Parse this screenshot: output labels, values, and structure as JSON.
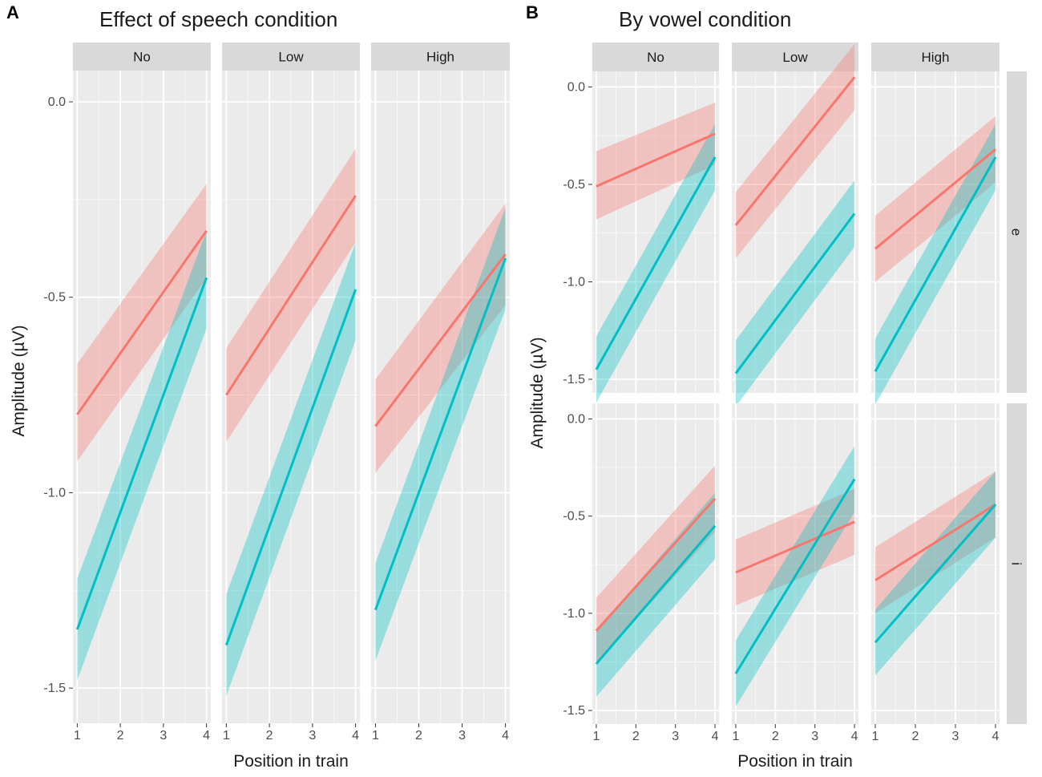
{
  "colors": {
    "series_red": "#F8766D",
    "series_red_band": "#F8766D",
    "series_teal": "#00BFC4",
    "series_teal_band": "#00BFC4",
    "panel_bg": "#EBEBEB",
    "strip_bg": "#D9D9D9",
    "grid": "#FFFFFF"
  },
  "chart_data": [
    {
      "type": "line",
      "panel_letter": "A",
      "title": "Effect of speech condition",
      "xlabel": "Position in train",
      "ylabel": "Amplitude (µV)",
      "x_ticks": [
        "1",
        "2",
        "3",
        "4"
      ],
      "y_ticks": [
        "0.0",
        "-0.5",
        "-1.0",
        "-1.5"
      ],
      "y_tick_values": [
        0.0,
        -0.5,
        -1.0,
        -1.5
      ],
      "xlim": [
        0.9,
        4.1
      ],
      "ylim": [
        -1.59,
        0.08
      ],
      "facets": [
        {
          "label": "No",
          "series": [
            {
              "name": "red",
              "x": [
                1,
                4
              ],
              "y": [
                -0.8,
                -0.33
              ],
              "ci_low": [
                -0.92,
                -0.45
              ],
              "ci_high": [
                -0.67,
                -0.21
              ]
            },
            {
              "name": "teal",
              "x": [
                1,
                4
              ],
              "y": [
                -1.35,
                -0.45
              ],
              "ci_low": [
                -1.48,
                -0.58
              ],
              "ci_high": [
                -1.22,
                -0.33
              ]
            }
          ]
        },
        {
          "label": "Low",
          "series": [
            {
              "name": "red",
              "x": [
                1,
                4
              ],
              "y": [
                -0.75,
                -0.24
              ],
              "ci_low": [
                -0.87,
                -0.36
              ],
              "ci_high": [
                -0.63,
                -0.12
              ]
            },
            {
              "name": "teal",
              "x": [
                1,
                4
              ],
              "y": [
                -1.39,
                -0.48
              ],
              "ci_low": [
                -1.52,
                -0.61
              ],
              "ci_high": [
                -1.26,
                -0.36
              ]
            }
          ]
        },
        {
          "label": "High",
          "series": [
            {
              "name": "red",
              "x": [
                1,
                4
              ],
              "y": [
                -0.83,
                -0.39
              ],
              "ci_low": [
                -0.95,
                -0.52
              ],
              "ci_high": [
                -0.71,
                -0.26
              ]
            },
            {
              "name": "teal",
              "x": [
                1,
                4
              ],
              "y": [
                -1.3,
                -0.4
              ],
              "ci_low": [
                -1.43,
                -0.53
              ],
              "ci_high": [
                -1.18,
                -0.27
              ]
            }
          ]
        }
      ]
    },
    {
      "type": "line",
      "panel_letter": "B",
      "title": "By vowel condition",
      "xlabel": "Position in train",
      "ylabel": "Amplitude (µV)",
      "x_ticks": [
        "1",
        "2",
        "3",
        "4"
      ],
      "y_ticks": [
        "0.0",
        "-0.5",
        "-1.0",
        "-1.5"
      ],
      "y_tick_values": [
        0.0,
        -0.5,
        -1.0,
        -1.5
      ],
      "xlim": [
        0.9,
        4.1
      ],
      "col_facets": [
        "No",
        "Low",
        "High"
      ],
      "row_facets": [
        {
          "label": "e",
          "ylim": [
            -1.57,
            0.08
          ],
          "facets": [
            {
              "series": [
                {
                  "name": "red",
                  "x": [
                    1,
                    4
                  ],
                  "y": [
                    -0.51,
                    -0.24
                  ],
                  "ci_low": [
                    -0.68,
                    -0.4
                  ],
                  "ci_high": [
                    -0.33,
                    -0.08
                  ]
                },
                {
                  "name": "teal",
                  "x": [
                    1,
                    4
                  ],
                  "y": [
                    -1.45,
                    -0.36
                  ],
                  "ci_low": [
                    -1.62,
                    -0.53
                  ],
                  "ci_high": [
                    -1.28,
                    -0.19
                  ]
                }
              ]
            },
            {
              "series": [
                {
                  "name": "red",
                  "x": [
                    1,
                    4
                  ],
                  "y": [
                    -0.71,
                    0.05
                  ],
                  "ci_low": [
                    -0.88,
                    -0.12
                  ],
                  "ci_high": [
                    -0.54,
                    0.22
                  ]
                },
                {
                  "name": "teal",
                  "x": [
                    1,
                    4
                  ],
                  "y": [
                    -1.47,
                    -0.65
                  ],
                  "ci_low": [
                    -1.64,
                    -0.82
                  ],
                  "ci_high": [
                    -1.3,
                    -0.48
                  ]
                }
              ]
            },
            {
              "series": [
                {
                  "name": "red",
                  "x": [
                    1,
                    4
                  ],
                  "y": [
                    -0.83,
                    -0.32
                  ],
                  "ci_low": [
                    -1.0,
                    -0.49
                  ],
                  "ci_high": [
                    -0.66,
                    -0.15
                  ]
                },
                {
                  "name": "teal",
                  "x": [
                    1,
                    4
                  ],
                  "y": [
                    -1.46,
                    -0.36
                  ],
                  "ci_low": [
                    -1.63,
                    -0.53
                  ],
                  "ci_high": [
                    -1.29,
                    -0.19
                  ]
                }
              ]
            }
          ]
        },
        {
          "label": "i",
          "ylim": [
            -1.57,
            0.08
          ],
          "facets": [
            {
              "series": [
                {
                  "name": "red",
                  "x": [
                    1,
                    4
                  ],
                  "y": [
                    -1.09,
                    -0.41
                  ],
                  "ci_low": [
                    -1.26,
                    -0.58
                  ],
                  "ci_high": [
                    -0.92,
                    -0.24
                  ]
                },
                {
                  "name": "teal",
                  "x": [
                    1,
                    4
                  ],
                  "y": [
                    -1.26,
                    -0.55
                  ],
                  "ci_low": [
                    -1.43,
                    -0.72
                  ],
                  "ci_high": [
                    -1.09,
                    -0.38
                  ]
                }
              ]
            },
            {
              "series": [
                {
                  "name": "red",
                  "x": [
                    1,
                    4
                  ],
                  "y": [
                    -0.79,
                    -0.53
                  ],
                  "ci_low": [
                    -0.96,
                    -0.7
                  ],
                  "ci_high": [
                    -0.62,
                    -0.36
                  ]
                },
                {
                  "name": "teal",
                  "x": [
                    1,
                    4
                  ],
                  "y": [
                    -1.31,
                    -0.31
                  ],
                  "ci_low": [
                    -1.48,
                    -0.48
                  ],
                  "ci_high": [
                    -1.14,
                    -0.14
                  ]
                }
              ]
            },
            {
              "series": [
                {
                  "name": "red",
                  "x": [
                    1,
                    4
                  ],
                  "y": [
                    -0.83,
                    -0.44
                  ],
                  "ci_low": [
                    -1.0,
                    -0.61
                  ],
                  "ci_high": [
                    -0.66,
                    -0.27
                  ]
                },
                {
                  "name": "teal",
                  "x": [
                    1,
                    4
                  ],
                  "y": [
                    -1.15,
                    -0.44
                  ],
                  "ci_low": [
                    -1.32,
                    -0.61
                  ],
                  "ci_high": [
                    -0.98,
                    -0.27
                  ]
                }
              ]
            }
          ]
        }
      ]
    }
  ]
}
